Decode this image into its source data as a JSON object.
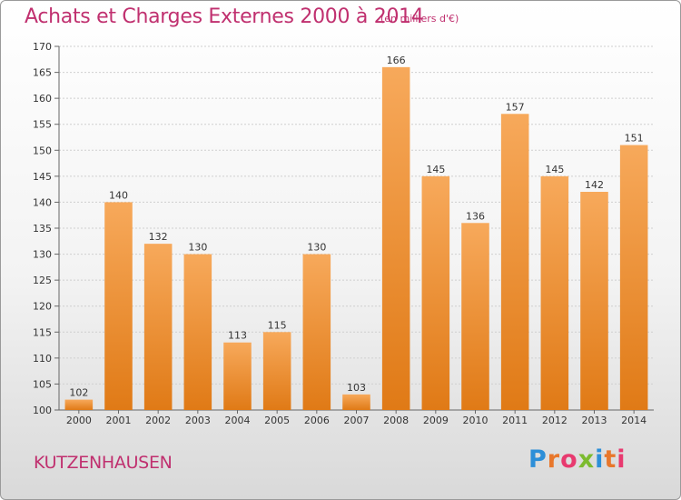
{
  "header": {
    "title": "Achats et Charges Externes 2000 à 2014",
    "subtitle": "(en milliers d'€)"
  },
  "footer": {
    "city": "KUTZENHAUSEN",
    "logo_letters": [
      "P",
      "r",
      "o",
      "x",
      "i",
      "t",
      "i"
    ],
    "logo_colors": [
      "#2d8fd8",
      "#e8772b",
      "#e83a6f",
      "#7cbb2f",
      "#2d8fd8",
      "#e8772b",
      "#e83a6f"
    ]
  },
  "colors": {
    "bar_light": "#f7a95b",
    "bar_dark": "#e07a16",
    "text": "#c0306f",
    "axis_text": "#333333"
  },
  "chart_data": {
    "type": "bar",
    "title": "Achats et Charges Externes 2000 à 2014",
    "subtitle": "(en milliers d'€)",
    "xlabel": "",
    "ylabel": "",
    "categories": [
      "2000",
      "2001",
      "2002",
      "2003",
      "2004",
      "2005",
      "2006",
      "2007",
      "2008",
      "2009",
      "2010",
      "2011",
      "2012",
      "2013",
      "2014"
    ],
    "values": [
      102,
      140,
      132,
      130,
      113,
      115,
      130,
      103,
      166,
      145,
      136,
      157,
      145,
      142,
      151
    ],
    "ylim": [
      100,
      170
    ],
    "yticks": [
      100,
      105,
      110,
      115,
      120,
      125,
      130,
      135,
      140,
      145,
      150,
      155,
      160,
      165,
      170
    ],
    "grid": true,
    "legend": "none"
  }
}
